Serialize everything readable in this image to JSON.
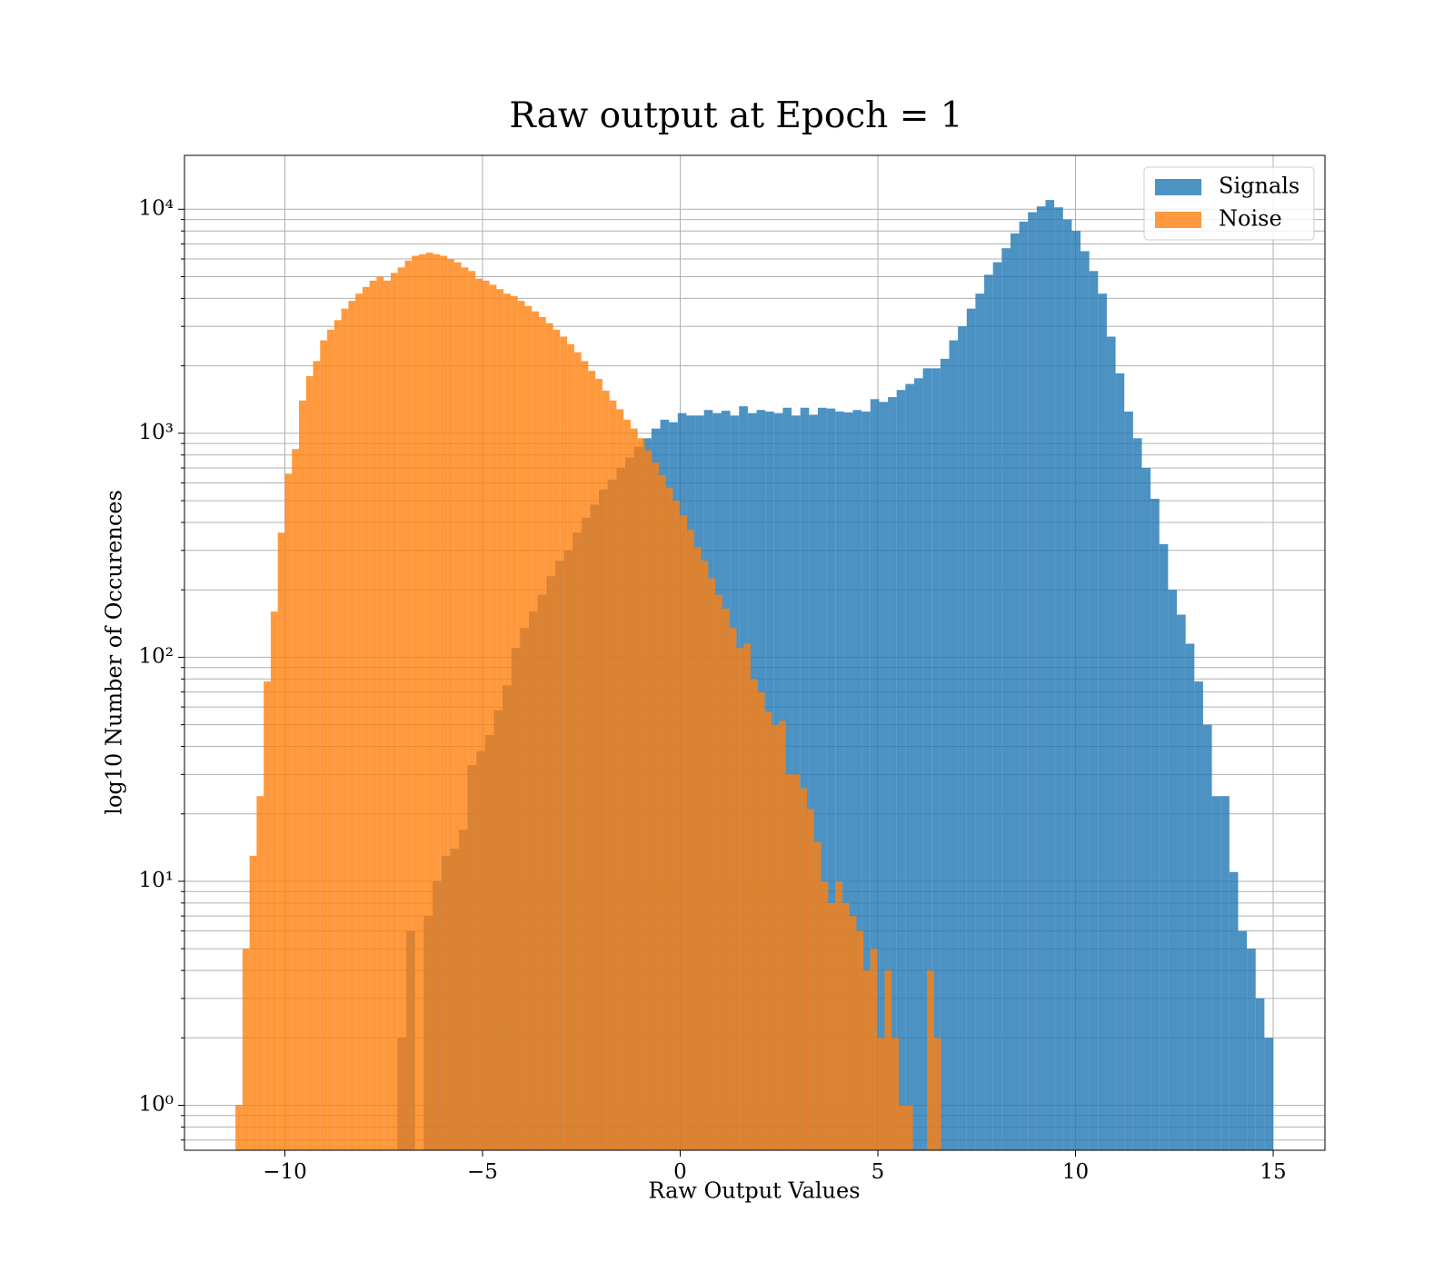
{
  "chart_data": {
    "type": "histogram",
    "title": "Raw output at Epoch = 1",
    "xlabel": "Raw Output Values",
    "ylabel": "log10 Number of Occurences",
    "log_y": true,
    "grid": true,
    "legend": "upper right",
    "xlim": [
      -12.54,
      16.31
    ],
    "ylim": [
      0.63,
      17400
    ],
    "xticks": [
      {
        "value": -10,
        "label": "−10"
      },
      {
        "value": -5,
        "label": "−5"
      },
      0,
      5,
      10,
      15
    ],
    "yticks": [
      {
        "value": 1,
        "label": "10⁰"
      },
      {
        "value": 10,
        "label": "10¹"
      },
      {
        "value": 100,
        "label": "10²"
      },
      {
        "value": 1000,
        "label": "10³"
      },
      {
        "value": 10000,
        "label": "10⁴"
      }
    ],
    "yticks_minor": [
      0.7,
      0.8,
      0.9,
      2,
      3,
      4,
      5,
      6,
      7,
      8,
      9,
      20,
      30,
      40,
      50,
      60,
      70,
      80,
      90,
      200,
      300,
      400,
      500,
      600,
      700,
      800,
      900,
      2000,
      3000,
      4000,
      5000,
      6000,
      7000,
      8000,
      9000
    ],
    "series": [
      {
        "name": "Signals",
        "color": "#1f77b4",
        "opacity": 0.8,
        "bins": [
          -7.15,
          -6.9285,
          -6.707,
          -6.4855,
          -6.264,
          -6.0425,
          -5.821,
          -5.5995,
          -5.378,
          -5.1565,
          -4.935,
          -4.7135,
          -4.492,
          -4.2705,
          -4.049,
          -3.8275,
          -3.606,
          -3.3845,
          -3.163,
          -2.9415,
          -2.72,
          -2.4985,
          -2.277,
          -2.0555,
          -1.834,
          -1.6125,
          -1.391,
          -1.1695,
          -0.948,
          -0.7265,
          -0.505,
          -0.2835,
          -0.062,
          0.1595,
          0.381,
          0.6025,
          0.824,
          1.0455,
          1.267,
          1.4885,
          1.71,
          1.9315,
          2.153,
          2.3745,
          2.596,
          2.8175,
          3.039,
          3.2605,
          3.482,
          3.7035,
          3.925,
          4.1465,
          4.368,
          4.5895,
          4.811,
          5.0325,
          5.254,
          5.4755,
          5.697,
          5.9185,
          6.14,
          6.3615,
          6.583,
          6.8045,
          7.026,
          7.2475,
          7.469,
          7.6905,
          7.912,
          8.1335,
          8.355,
          8.5765,
          8.798,
          9.0195,
          9.241,
          9.4625,
          9.684,
          9.9055,
          10.127,
          10.3485,
          10.57,
          10.7915,
          11.013,
          11.2345,
          11.456,
          11.6775,
          11.899,
          12.1205,
          12.342,
          12.5635,
          12.785,
          13.0065,
          13.228,
          13.4495,
          13.671,
          13.8925,
          14.114,
          14.3355,
          14.557,
          14.7785,
          15.0
        ],
        "values": [
          2,
          6,
          0,
          7,
          10,
          13,
          14,
          17,
          33,
          38,
          45,
          58,
          75,
          110,
          135,
          160,
          190,
          230,
          270,
          300,
          360,
          420,
          480,
          560,
          620,
          700,
          780,
          870,
          950,
          1050,
          1150,
          1120,
          1230,
          1200,
          1200,
          1270,
          1230,
          1260,
          1200,
          1320,
          1230,
          1270,
          1250,
          1230,
          1300,
          1200,
          1300,
          1210,
          1300,
          1290,
          1250,
          1240,
          1270,
          1250,
          1420,
          1380,
          1450,
          1560,
          1660,
          1760,
          1950,
          1950,
          2150,
          2600,
          3000,
          3600,
          4200,
          5100,
          5800,
          6700,
          7800,
          8800,
          9700,
          10300,
          11000,
          10200,
          9000,
          8000,
          6500,
          5300,
          4200,
          2700,
          1850,
          1250,
          950,
          700,
          510,
          320,
          200,
          155,
          115,
          78,
          50,
          24,
          24,
          11,
          6,
          5,
          3,
          2
        ]
      },
      {
        "name": "Noise",
        "color": "#ff7f0e",
        "opacity": 0.8,
        "bins": [
          -11.25,
          -11.0715,
          -10.893,
          -10.7145,
          -10.536,
          -10.3575,
          -10.179,
          -10.0005,
          -9.822,
          -9.6435,
          -9.465,
          -9.2865,
          -9.108,
          -8.9295,
          -8.751,
          -8.5725,
          -8.394,
          -8.2155,
          -8.037,
          -7.8585,
          -7.68,
          -7.5015,
          -7.323,
          -7.1445,
          -6.966,
          -6.7875,
          -6.609,
          -6.4305,
          -6.252,
          -6.0735,
          -5.895,
          -5.7165,
          -5.538,
          -5.3595,
          -5.181,
          -5.0025,
          -4.824,
          -4.6455,
          -4.467,
          -4.2885,
          -4.11,
          -3.9315,
          -3.753,
          -3.5745,
          -3.396,
          -3.2175,
          -3.039,
          -2.8605,
          -2.682,
          -2.5035,
          -2.325,
          -2.1465,
          -1.968,
          -1.7895,
          -1.611,
          -1.4325,
          -1.254,
          -1.0755,
          -0.897,
          -0.7185,
          -0.54,
          -0.3615,
          -0.183,
          -0.0045,
          0.174,
          0.3525,
          0.531,
          0.7095,
          0.888,
          1.0665,
          1.245,
          1.4235,
          1.602,
          1.7805,
          1.959,
          2.1375,
          2.316,
          2.4945,
          2.673,
          2.8515,
          3.03,
          3.2085,
          3.387,
          3.5655,
          3.744,
          3.9225,
          4.101,
          4.2795,
          4.458,
          4.6365,
          4.815,
          4.9935,
          5.172,
          5.3505,
          5.529,
          5.7075,
          5.886,
          6.0645,
          6.243,
          6.4215,
          6.6
        ],
        "values": [
          1,
          5,
          13,
          24,
          78,
          160,
          360,
          660,
          850,
          1400,
          1800,
          2100,
          2600,
          2900,
          3200,
          3600,
          3900,
          4200,
          4500,
          4800,
          5000,
          4800,
          5200,
          5500,
          5900,
          6200,
          6300,
          6400,
          6300,
          6200,
          6000,
          5800,
          5500,
          5300,
          4900,
          4800,
          4600,
          4400,
          4200,
          4100,
          3900,
          3700,
          3500,
          3300,
          3100,
          2900,
          2700,
          2500,
          2300,
          2100,
          1900,
          1750,
          1550,
          1400,
          1280,
          1150,
          1050,
          950,
          840,
          740,
          650,
          570,
          500,
          430,
          370,
          310,
          270,
          225,
          190,
          165,
          135,
          110,
          115,
          80,
          70,
          57,
          50,
          52,
          30,
          30,
          26,
          21,
          15,
          10,
          8,
          10,
          8,
          7,
          6,
          4,
          5,
          2,
          4,
          2,
          1,
          1,
          0,
          0,
          4,
          2
        ]
      }
    ]
  }
}
